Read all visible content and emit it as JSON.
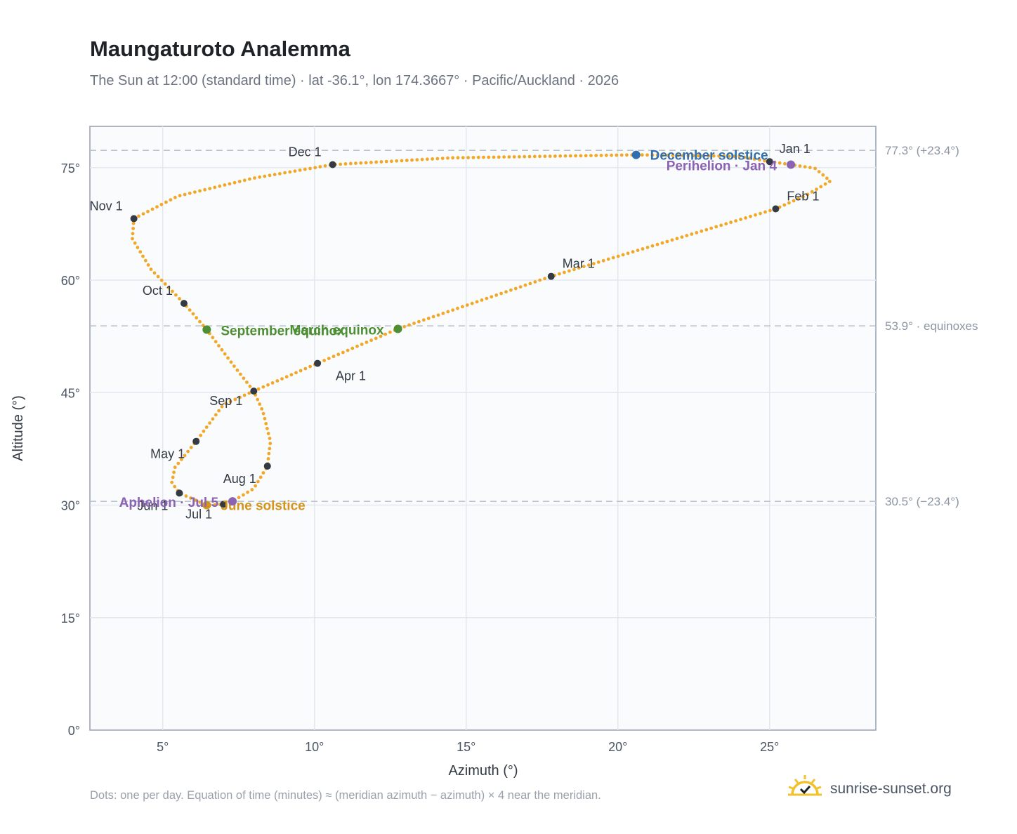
{
  "title": "Maungaturoto Analemma",
  "subtitle": "The Sun at 12:00 (standard time) · lat -36.1°, lon 174.3667° · Pacific/Auckland · 2026",
  "footnote": "Dots: one per day. Equation of time (minutes) ≈ (meridian azimuth − azimuth) × 4 near the meridian.",
  "brand": {
    "name": "sunrise-sunset.org",
    "icon": "sun-check-icon"
  },
  "colors": {
    "curve": "#f2a827",
    "month_marker": "#333a44",
    "december_solstice": "#2f6fb0",
    "june_solstice": "#d4951a",
    "equinox": "#4e8f35",
    "apsis": "#8a63b3",
    "plot_bg": "#f9fbfd",
    "grid": "#e4e8ee",
    "ref_line": "#b9c3cf"
  },
  "chart_data": {
    "type": "scatter",
    "xlabel": "Azimuth (°)",
    "ylabel": "Altitude (°)",
    "xlim": [
      2.6,
      28.5
    ],
    "ylim": [
      0,
      80.5
    ],
    "xticks": [
      5,
      10,
      15,
      20,
      25
    ],
    "yticks": [
      0,
      15,
      30,
      45,
      60,
      75
    ],
    "tick_suffix": "°",
    "grid": true,
    "series": [
      {
        "path_points": [
          [
            25.0,
            75.8
          ],
          [
            25.7,
            75.4
          ],
          [
            26.5,
            74.9
          ],
          [
            27.0,
            73.2
          ],
          [
            26.2,
            71.3
          ],
          [
            25.2,
            69.5
          ],
          [
            17.8,
            60.5
          ],
          [
            12.75,
            53.5
          ],
          [
            10.1,
            48.9
          ],
          [
            8.0,
            45.2
          ],
          [
            7.0,
            43.4
          ],
          [
            6.1,
            38.5
          ],
          [
            5.4,
            35.0
          ],
          [
            5.3,
            33.0
          ],
          [
            5.55,
            31.6
          ],
          [
            6.45,
            30.0
          ],
          [
            7.0,
            30.1
          ],
          [
            7.3,
            30.5
          ],
          [
            8.0,
            32.2
          ],
          [
            8.45,
            35.2
          ],
          [
            8.55,
            38.5
          ],
          [
            8.3,
            42.5
          ],
          [
            8.0,
            45.2
          ],
          [
            7.3,
            48.8
          ],
          [
            6.45,
            53.4
          ],
          [
            5.7,
            56.9
          ],
          [
            4.6,
            61.5
          ],
          [
            4.0,
            65.5
          ],
          [
            4.05,
            68.2
          ],
          [
            5.5,
            71.2
          ],
          [
            8.0,
            73.6
          ],
          [
            10.6,
            75.4
          ],
          [
            14.5,
            76.3
          ],
          [
            20.6,
            76.7
          ],
          [
            24.0,
            76.5
          ],
          [
            25.0,
            75.8
          ]
        ]
      }
    ],
    "month_markers": [
      {
        "label": "Jan 1",
        "x": 25.0,
        "y": 75.8
      },
      {
        "label": "Feb 1",
        "x": 25.2,
        "y": 69.5
      },
      {
        "label": "Mar 1",
        "x": 17.8,
        "y": 60.5
      },
      {
        "label": "Apr 1",
        "x": 10.1,
        "y": 48.9
      },
      {
        "label": "May 1",
        "x": 6.1,
        "y": 38.5
      },
      {
        "label": "Jun 1",
        "x": 5.55,
        "y": 31.6
      },
      {
        "label": "Jul 1",
        "x": 7.0,
        "y": 30.1
      },
      {
        "label": "Aug 1",
        "x": 8.45,
        "y": 35.2
      },
      {
        "label": "Sep 1",
        "x": 8.0,
        "y": 45.2
      },
      {
        "label": "Oct 1",
        "x": 5.7,
        "y": 56.9
      },
      {
        "label": "Nov 1",
        "x": 4.05,
        "y": 68.2
      },
      {
        "label": "Dec 1",
        "x": 10.6,
        "y": 75.4
      }
    ],
    "events": [
      {
        "label": "December solstice",
        "x": 20.6,
        "y": 76.7,
        "color": "#2f6fb0"
      },
      {
        "label": "June solstice",
        "x": 6.45,
        "y": 30.0,
        "color": "#d4951a"
      },
      {
        "label": "March equinox",
        "x": 12.75,
        "y": 53.5,
        "color": "#4e8f35"
      },
      {
        "label": "September equinox",
        "x": 6.45,
        "y": 53.4,
        "color": "#4e8f35"
      },
      {
        "label": "Perihelion · Jan 4",
        "x": 25.7,
        "y": 75.4,
        "color": "#8a63b3"
      },
      {
        "label": "Aphelion · Jul 5",
        "x": 7.3,
        "y": 30.5,
        "color": "#8a63b3"
      }
    ],
    "reference_lines": [
      {
        "y": 77.3,
        "label": "77.3° (+23.4°)"
      },
      {
        "y": 53.9,
        "label": "53.9° · equinoxes"
      },
      {
        "y": 30.5,
        "label": "30.5° (−23.4°)"
      }
    ]
  }
}
